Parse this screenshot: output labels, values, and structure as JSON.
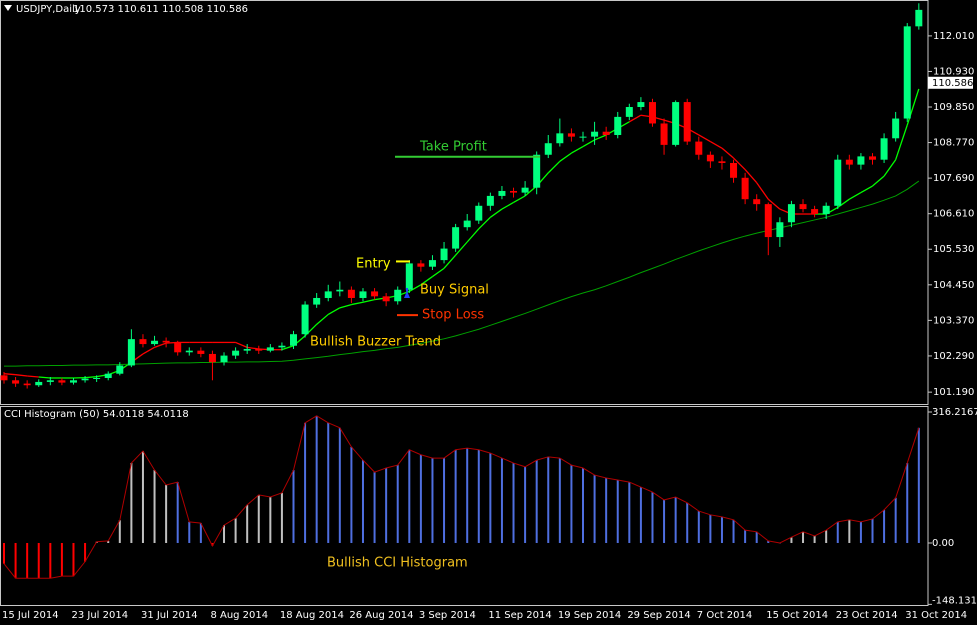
{
  "chart_data": [
    {
      "type": "candlestick",
      "title": "USDJPY,Daily",
      "subtitle": "110.573 110.611 110.508 110.586",
      "categories": [
        "15 Jul 2014",
        null,
        null,
        null,
        null,
        null,
        "23 Jul 2014",
        null,
        null,
        null,
        null,
        null,
        "31 Jul 2014",
        null,
        null,
        null,
        null,
        null,
        "8 Aug 2014",
        null,
        null,
        null,
        null,
        null,
        "18 Aug 2014",
        null,
        null,
        null,
        null,
        null,
        "26 Aug 2014",
        null,
        null,
        null,
        null,
        null,
        "3 Sep 2014",
        null,
        null,
        null,
        null,
        null,
        "11 Sep 2014",
        null,
        null,
        null,
        null,
        null,
        "19 Sep 2014",
        null,
        null,
        null,
        null,
        null,
        "29 Sep 2014",
        null,
        null,
        null,
        null,
        null,
        "7 Oct 2014",
        null,
        null,
        null,
        null,
        null,
        "15 Oct 2014",
        null,
        null,
        null,
        null,
        null,
        "23 Oct 2014",
        null,
        null,
        null,
        null,
        null,
        "31 Oct 2014",
        null
      ],
      "open": [
        101.7,
        101.55,
        101.45,
        101.4,
        101.5,
        101.55,
        101.48,
        101.55,
        101.6,
        101.62,
        101.75,
        102.0,
        102.8,
        102.65,
        102.75,
        102.7,
        102.4,
        102.45,
        102.35,
        102.1,
        102.3,
        102.45,
        102.5,
        102.45,
        102.55,
        102.6,
        102.95,
        103.85,
        104.05,
        104.25,
        104.3,
        104.05,
        104.25,
        104.1,
        103.95,
        104.3,
        105.1,
        105.0,
        105.2,
        105.55,
        106.2,
        106.4,
        106.85,
        107.15,
        107.3,
        107.25,
        107.4,
        108.4,
        108.75,
        109.05,
        108.95,
        108.95,
        109.1,
        109.0,
        109.55,
        109.85,
        110.0,
        109.35,
        108.7,
        110.0,
        108.8,
        108.4,
        108.2,
        108.15,
        107.7,
        107.05,
        106.9,
        105.9,
        106.35,
        106.9,
        106.75,
        106.6,
        106.85,
        108.25,
        108.1,
        108.35,
        108.25,
        108.9,
        109.5,
        112.3
      ],
      "high": [
        101.8,
        101.65,
        101.55,
        101.58,
        101.65,
        101.62,
        101.62,
        101.68,
        101.7,
        101.82,
        102.1,
        103.1,
        102.95,
        102.9,
        102.85,
        102.75,
        102.55,
        102.55,
        102.45,
        102.4,
        102.55,
        102.65,
        102.6,
        102.65,
        102.7,
        103.05,
        103.95,
        104.2,
        104.45,
        104.55,
        104.4,
        104.35,
        104.35,
        104.2,
        104.4,
        105.2,
        105.2,
        105.35,
        105.75,
        106.3,
        106.6,
        106.95,
        107.25,
        107.45,
        107.4,
        107.6,
        108.5,
        109.0,
        109.5,
        109.2,
        109.1,
        109.4,
        109.25,
        109.7,
        109.95,
        110.15,
        110.1,
        109.5,
        110.05,
        110.1,
        108.95,
        108.5,
        108.35,
        108.25,
        107.85,
        107.2,
        106.95,
        106.5,
        107.0,
        107.05,
        106.85,
        106.95,
        108.4,
        108.4,
        108.45,
        108.45,
        109.05,
        109.7,
        112.4,
        113.0
      ],
      "low": [
        101.45,
        101.35,
        101.3,
        101.35,
        101.4,
        101.4,
        101.42,
        101.48,
        101.5,
        101.55,
        101.7,
        101.95,
        102.55,
        102.6,
        102.55,
        102.3,
        102.3,
        102.25,
        101.55,
        102.0,
        102.2,
        102.35,
        102.35,
        102.4,
        102.45,
        102.5,
        102.85,
        103.75,
        103.95,
        104.1,
        103.9,
        103.95,
        104.0,
        103.8,
        103.85,
        104.2,
        104.85,
        104.9,
        105.1,
        105.45,
        106.1,
        106.3,
        106.7,
        107.05,
        107.1,
        107.15,
        107.2,
        108.3,
        108.65,
        108.8,
        108.8,
        108.7,
        108.85,
        108.9,
        109.45,
        109.75,
        109.25,
        108.4,
        108.65,
        108.7,
        108.25,
        108.0,
        107.95,
        107.55,
        106.9,
        106.7,
        105.35,
        105.6,
        106.2,
        106.65,
        106.5,
        106.45,
        106.75,
        107.95,
        107.95,
        108.1,
        108.15,
        108.8,
        109.4,
        112.2
      ],
      "close": [
        101.55,
        101.45,
        101.4,
        101.5,
        101.55,
        101.48,
        101.55,
        101.6,
        101.62,
        101.75,
        102.0,
        102.8,
        102.65,
        102.75,
        102.7,
        102.4,
        102.45,
        102.35,
        102.1,
        102.3,
        102.45,
        102.5,
        102.45,
        102.55,
        102.6,
        102.95,
        103.85,
        104.05,
        104.25,
        104.3,
        104.05,
        104.25,
        104.1,
        103.95,
        104.3,
        105.1,
        105.0,
        105.2,
        105.55,
        106.2,
        106.4,
        106.85,
        107.15,
        107.3,
        107.25,
        107.4,
        108.4,
        108.75,
        109.05,
        108.95,
        108.95,
        109.1,
        109.0,
        109.55,
        109.85,
        110.0,
        109.35,
        108.7,
        110.0,
        108.8,
        108.4,
        108.2,
        108.15,
        107.7,
        107.05,
        106.9,
        105.9,
        106.35,
        106.9,
        106.75,
        106.6,
        106.85,
        108.25,
        108.1,
        108.35,
        108.25,
        108.9,
        109.5,
        112.3,
        112.8
      ],
      "up_color": "#00ff7f",
      "down_color": "#ff0000",
      "series": [
        {
          "values": [
            101.75,
            101.72,
            101.68,
            101.65,
            101.62,
            101.62,
            101.62,
            101.63,
            101.66,
            101.72,
            101.85,
            102.1,
            102.35,
            102.55,
            102.68,
            102.7,
            102.7,
            102.7,
            102.7,
            102.7,
            102.7,
            102.55,
            102.5,
            102.48,
            102.48,
            102.6,
            102.9,
            103.25,
            103.55,
            103.75,
            103.85,
            103.92,
            104.0,
            104.05,
            104.12,
            104.25,
            104.45,
            104.7,
            104.95,
            105.35,
            105.75,
            106.15,
            106.5,
            106.75,
            106.95,
            107.15,
            107.45,
            107.85,
            108.2,
            108.45,
            108.65,
            108.85,
            109.0,
            109.2,
            109.4,
            109.6,
            109.55,
            109.45,
            109.35,
            109.2,
            109.0,
            108.8,
            108.6,
            108.3,
            107.95,
            107.55,
            107.05,
            106.75,
            106.6,
            106.6,
            106.6,
            106.6,
            106.8,
            107.05,
            107.25,
            107.45,
            107.75,
            108.25,
            109.3,
            110.4
          ],
          "colors": [
            "red",
            "red",
            "red",
            "red",
            "lime",
            "lime",
            "lime",
            "lime",
            "lime",
            "lime",
            "lime",
            "lime",
            "red",
            "red",
            "red",
            "red",
            "red",
            "red",
            "red",
            "red",
            "red",
            "red",
            "red",
            "red",
            "red",
            "lime",
            "lime",
            "lime",
            "lime",
            "lime",
            "lime",
            "lime",
            "lime",
            "lime",
            "lime",
            "lime",
            "lime",
            "lime",
            "lime",
            "lime",
            "lime",
            "lime",
            "lime",
            "lime",
            "lime",
            "lime",
            "lime",
            "lime",
            "lime",
            "lime",
            "lime",
            "lime",
            "lime",
            "lime",
            "lime",
            "red",
            "red",
            "red",
            "red",
            "red",
            "red",
            "red",
            "red",
            "red",
            "red",
            "red",
            "red",
            "red",
            "red",
            "red",
            "red",
            "lime",
            "lime",
            "lime",
            "lime",
            "lime",
            "lime",
            "lime",
            "lime",
            "lime"
          ]
        },
        {
          "color": "#00a000",
          "values": [
            101.98,
            101.98,
            101.99,
            101.99,
            102.0,
            102.0,
            102.01,
            102.01,
            102.02,
            102.02,
            102.03,
            102.04,
            102.05,
            102.06,
            102.07,
            102.08,
            102.08,
            102.09,
            102.09,
            102.1,
            102.1,
            102.11,
            102.11,
            102.12,
            102.13,
            102.16,
            102.2,
            102.24,
            102.28,
            102.33,
            102.37,
            102.42,
            102.46,
            102.51,
            102.55,
            102.61,
            102.67,
            102.74,
            102.81,
            102.9,
            103.0,
            103.1,
            103.22,
            103.34,
            103.46,
            103.58,
            103.71,
            103.84,
            103.97,
            104.09,
            104.2,
            104.3,
            104.42,
            104.55,
            104.68,
            104.82,
            104.95,
            105.08,
            105.22,
            105.35,
            105.48,
            105.6,
            105.72,
            105.83,
            105.93,
            106.02,
            106.1,
            106.18,
            106.26,
            106.34,
            106.42,
            106.5,
            106.6,
            106.7,
            106.8,
            106.9,
            107.02,
            107.15,
            107.35,
            107.6
          ]
        }
      ],
      "ylim": [
        100.83,
        113.1
      ],
      "yticks": [
        {
          "value": 112.01,
          "label": "112.010"
        },
        {
          "value": 110.93,
          "label": "110.930"
        },
        {
          "value": 109.85,
          "label": "109.850"
        },
        {
          "value": 108.77,
          "label": "108.770"
        },
        {
          "value": 107.69,
          "label": "107.690"
        },
        {
          "value": 106.61,
          "label": "106.610"
        },
        {
          "value": 105.53,
          "label": "105.530"
        },
        {
          "value": 104.45,
          "label": "104.450"
        },
        {
          "value": 103.37,
          "label": "103.370"
        },
        {
          "value": 102.29,
          "label": "102.290"
        },
        {
          "value": 101.19,
          "label": "101.190"
        }
      ],
      "current_price": 110.586,
      "annotations": [
        {
          "text": "Take Profit",
          "value": 108.34,
          "color": "#33cc33"
        },
        {
          "text": "Entry",
          "value": 105.16,
          "color": "#ffff00"
        },
        {
          "text": "Buy Signal",
          "color": "#ffcc00"
        },
        {
          "text": "Stop Loss",
          "value": 103.53,
          "color": "#ff3300"
        },
        {
          "text": "Bullish Buzzer Trend",
          "color": "#ffcc00"
        }
      ]
    },
    {
      "type": "histogram-bars",
      "title": "CCI Histogram (50) 54.0118 54.0118",
      "values": [
        -50,
        -85,
        -85,
        -85,
        -85,
        -80,
        -80,
        -45,
        3,
        5,
        55,
        193,
        222,
        176,
        140,
        147,
        51,
        48,
        -7,
        43,
        60,
        92,
        116,
        111,
        121,
        176,
        290,
        307,
        290,
        278,
        232,
        200,
        171,
        181,
        188,
        225,
        213,
        205,
        205,
        225,
        229,
        225,
        217,
        205,
        193,
        184,
        200,
        208,
        205,
        188,
        181,
        164,
        157,
        152,
        147,
        135,
        123,
        104,
        111,
        97,
        77,
        68,
        63,
        56,
        31,
        27,
        5,
        0,
        14,
        27,
        17,
        31,
        51,
        56,
        51,
        58,
        80,
        109,
        193,
        278
      ],
      "bar_colors": [
        "#ff0000",
        "#ff0000",
        "#ff0000",
        "#ff0000",
        "#ff0000",
        "#ff0000",
        "#ff0000",
        "#ff0000",
        "#c0c0c0",
        "#c0c0c0",
        "#c0c0c0",
        "#c0c0c0",
        "#c0c0c0",
        "#c0c0c0",
        "#c0c0c0",
        "#4f6fe0",
        "#4f6fe0",
        "#4f6fe0",
        "#ff0000",
        "#c0c0c0",
        "#c0c0c0",
        "#c0c0c0",
        "#c0c0c0",
        "#c0c0c0",
        "#c0c0c0",
        "#4f6fe0",
        "#4f6fe0",
        "#4f6fe0",
        "#4f6fe0",
        "#4f6fe0",
        "#4f6fe0",
        "#4f6fe0",
        "#4f6fe0",
        "#4f6fe0",
        "#4f6fe0",
        "#4f6fe0",
        "#4f6fe0",
        "#4f6fe0",
        "#4f6fe0",
        "#4f6fe0",
        "#4f6fe0",
        "#4f6fe0",
        "#4f6fe0",
        "#4f6fe0",
        "#4f6fe0",
        "#4f6fe0",
        "#4f6fe0",
        "#4f6fe0",
        "#4f6fe0",
        "#4f6fe0",
        "#4f6fe0",
        "#4f6fe0",
        "#4f6fe0",
        "#4f6fe0",
        "#4f6fe0",
        "#4f6fe0",
        "#4f6fe0",
        "#4f6fe0",
        "#4f6fe0",
        "#4f6fe0",
        "#4f6fe0",
        "#4f6fe0",
        "#4f6fe0",
        "#4f6fe0",
        "#4f6fe0",
        "#4f6fe0",
        "#4f6fe0",
        "#4f6fe0",
        "#c0c0c0",
        "#c0c0c0",
        "#c0c0c0",
        "#c0c0c0",
        "#4f6fe0",
        "#c0c0c0",
        "#4f6fe0",
        "#4f6fe0",
        "#4f6fe0",
        "#4f6fe0",
        "#4f6fe0",
        "#4f6fe0"
      ],
      "line_color": "#b00000",
      "ylim": [
        -152.1,
        330.7
      ],
      "yticks": [
        316.2167,
        {
          "value": 0,
          "label": "0.00"
        },
        -148.1314
      ],
      "annotation": {
        "text": "Bullish CCI Histogram",
        "color": "#f0c020"
      }
    }
  ]
}
